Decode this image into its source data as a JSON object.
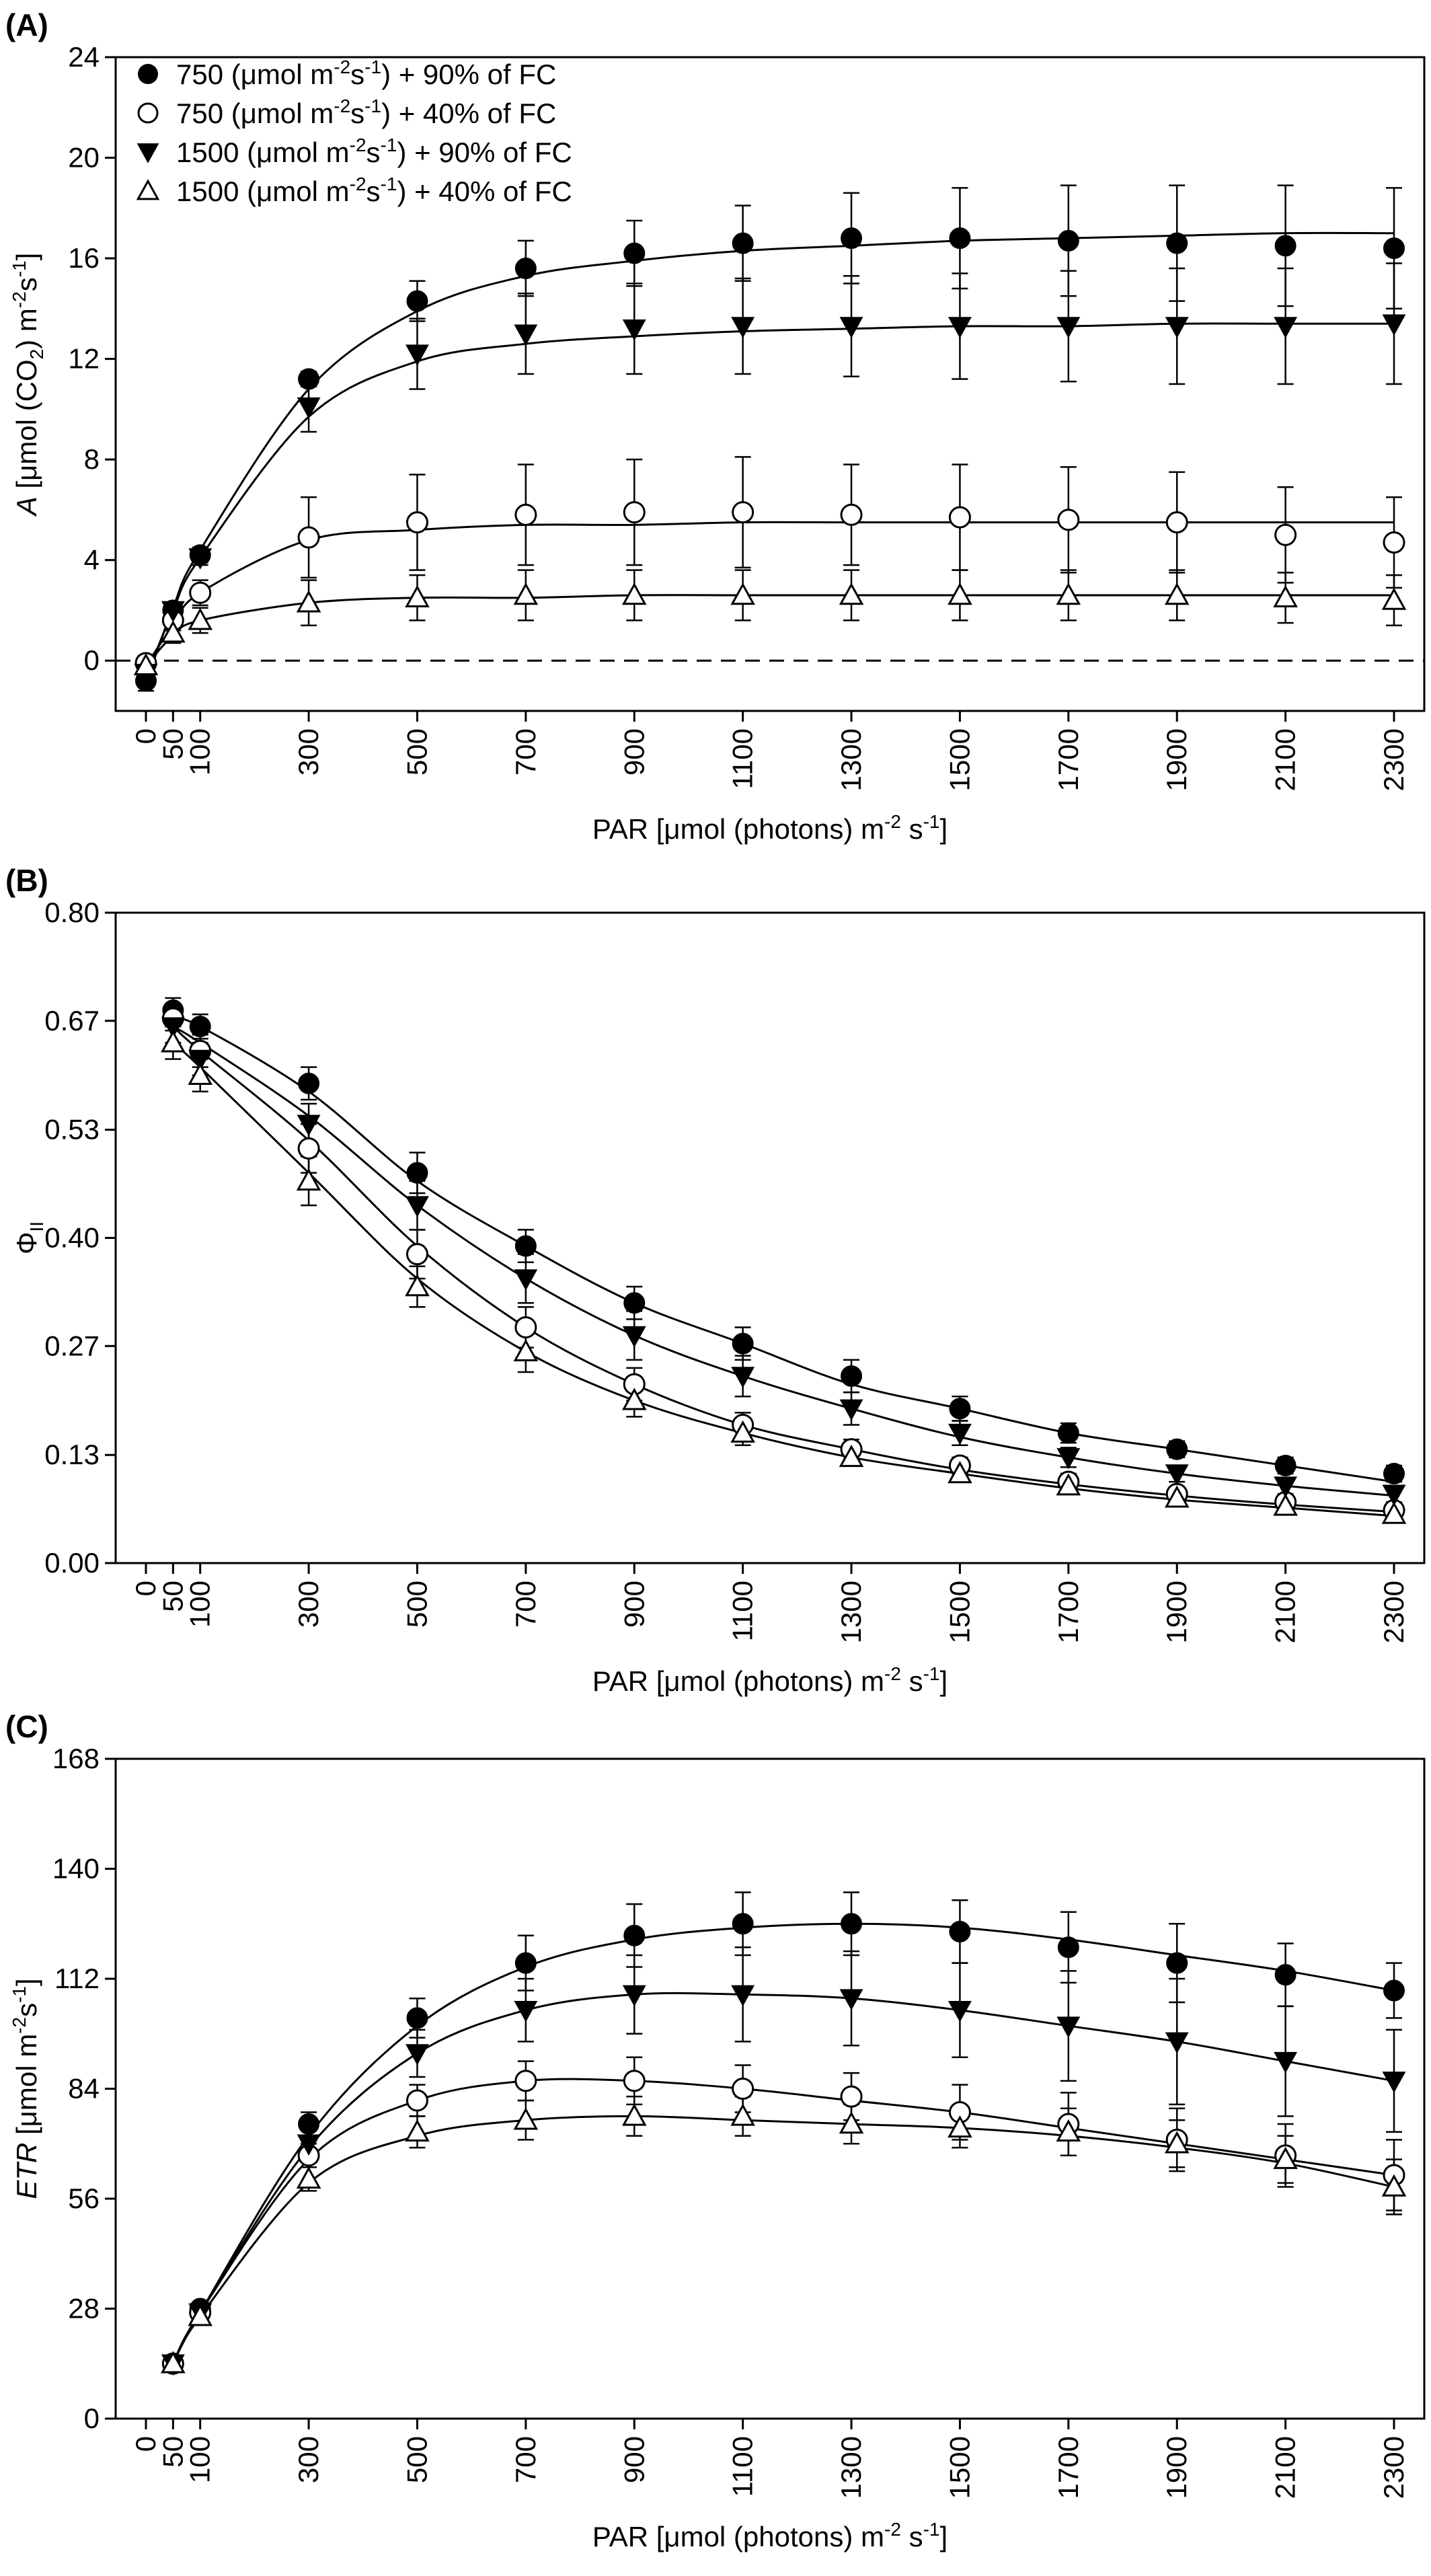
{
  "figure": {
    "legend": [
      {
        "marker": "filled-circle",
        "label": "750 (μmol m-2s-1) + 90% of FC",
        "parts": [
          "750 (μmol m",
          "-2",
          "s",
          "-1",
          ") + 90% of FC"
        ]
      },
      {
        "marker": "open-circle",
        "label": "750 (μmol m-2s-1) + 40% of FC",
        "parts": [
          "750 (μmol m",
          "-2",
          "s",
          "-1",
          ") + 40% of FC"
        ]
      },
      {
        "marker": "filled-triangle-down",
        "label": "1500 (μmol m-2s-1) + 90% of FC",
        "parts": [
          "1500 (μmol m",
          "-2",
          "s",
          "-1",
          ") + 90% of FC"
        ]
      },
      {
        "marker": "open-triangle-up",
        "label": "1500 (μmol m-2s-1) + 40% of FC",
        "parts": [
          "1500 (μmol m",
          "-2",
          "s",
          "-1",
          ") + 40% of FC"
        ]
      }
    ],
    "colors": {
      "ink": "#000000",
      "background": "#ffffff"
    }
  },
  "chart_data": [
    {
      "panel_label": "(A)",
      "type": "scatter",
      "xlabel": "PAR [μmol (photons) m-2 s-1]",
      "xlabel_parts": [
        "PAR [μmol (photons) m",
        "-2",
        " s",
        "-1",
        "]"
      ],
      "ylabel": "A [μmol (CO2) m-2s-1]",
      "ylabel_parts": [
        [
          "A",
          "italic"
        ],
        [
          " [μmol (CO",
          ""
        ],
        [
          "2",
          "sub"
        ],
        [
          ") m",
          ""
        ],
        [
          "-2",
          "sup"
        ],
        [
          "s",
          ""
        ],
        [
          "-1",
          "sup"
        ],
        [
          "]",
          ""
        ]
      ],
      "xlim": [
        0,
        2300
      ],
      "ylim": [
        -2,
        24
      ],
      "x_ticks": [
        0,
        50,
        100,
        300,
        500,
        700,
        900,
        1100,
        1300,
        1500,
        1700,
        1900,
        2100,
        2300
      ],
      "y_ticks": [
        0,
        4,
        8,
        12,
        16,
        20,
        24
      ],
      "y_tick_labels": [
        "0",
        "4",
        "8",
        "12",
        "16",
        "20",
        "24"
      ],
      "reference_line": {
        "y": 0,
        "style": "dashed"
      },
      "legend_position": "top-left",
      "grid": false,
      "x": [
        0,
        50,
        100,
        300,
        500,
        700,
        900,
        1100,
        1300,
        1500,
        1700,
        1900,
        2100,
        2300
      ],
      "series": [
        {
          "legend_index": 0,
          "marker": "filled-circle",
          "y": [
            -0.8,
            2.0,
            4.2,
            11.2,
            14.3,
            15.6,
            16.2,
            16.6,
            16.8,
            16.8,
            16.7,
            16.6,
            16.5,
            16.4
          ],
          "err": [
            0.4,
            0.3,
            0.3,
            0.3,
            0.8,
            1.1,
            1.3,
            1.5,
            1.8,
            2.0,
            2.2,
            2.3,
            2.4,
            2.4
          ],
          "fit": [
            -0.9,
            2.1,
            4.4,
            10.8,
            13.9,
            15.3,
            15.9,
            16.3,
            16.5,
            16.7,
            16.8,
            16.9,
            17.0,
            17.0
          ]
        },
        {
          "legend_index": 1,
          "marker": "open-circle",
          "y": [
            -0.1,
            1.6,
            2.7,
            4.9,
            5.5,
            5.8,
            5.9,
            5.9,
            5.8,
            5.7,
            5.6,
            5.5,
            5.0,
            4.7
          ],
          "err": [
            0.3,
            0.4,
            0.5,
            1.6,
            1.9,
            2.0,
            2.1,
            2.2,
            2.0,
            2.1,
            2.1,
            2.0,
            1.9,
            1.8
          ],
          "fit": [
            -0.2,
            1.4,
            2.7,
            4.8,
            5.2,
            5.4,
            5.4,
            5.5,
            5.5,
            5.5,
            5.5,
            5.5,
            5.5,
            5.5
          ]
        },
        {
          "legend_index": 2,
          "marker": "filled-triangle-down",
          "y": [
            -0.5,
            2.0,
            4.1,
            10.1,
            12.2,
            13.0,
            13.2,
            13.3,
            13.3,
            13.3,
            13.3,
            13.3,
            13.3,
            13.4
          ],
          "err": [
            0.4,
            0.3,
            0.3,
            1.0,
            1.4,
            1.6,
            1.8,
            1.9,
            2.0,
            2.1,
            2.2,
            2.3,
            2.3,
            2.4
          ],
          "fit": [
            -0.7,
            2.0,
            4.1,
            9.7,
            11.9,
            12.6,
            12.9,
            13.1,
            13.2,
            13.3,
            13.3,
            13.4,
            13.4,
            13.4
          ]
        },
        {
          "legend_index": 3,
          "marker": "open-triangle-up",
          "y": [
            -0.2,
            1.1,
            1.6,
            2.3,
            2.5,
            2.6,
            2.6,
            2.6,
            2.6,
            2.6,
            2.6,
            2.6,
            2.5,
            2.4
          ],
          "err": [
            0.3,
            0.4,
            0.5,
            0.9,
            0.9,
            1.0,
            1.0,
            1.0,
            1.0,
            1.0,
            1.0,
            1.0,
            1.0,
            1.0
          ],
          "fit": [
            -0.2,
            1.0,
            1.6,
            2.3,
            2.5,
            2.5,
            2.6,
            2.6,
            2.6,
            2.6,
            2.6,
            2.6,
            2.6,
            2.6
          ]
        }
      ]
    },
    {
      "panel_label": "(B)",
      "type": "scatter",
      "xlabel": "PAR [μmol (photons) m-2 s-1]",
      "xlabel_parts": [
        "PAR [μmol (photons) m",
        "-2",
        " s",
        "-1",
        "]"
      ],
      "ylabel": "ΦII",
      "ylabel_parts": [
        [
          "Φ",
          ""
        ],
        [
          "II",
          "sub"
        ]
      ],
      "xlim": [
        0,
        2300
      ],
      "ylim": [
        0,
        0.8
      ],
      "x_ticks": [
        0,
        50,
        100,
        300,
        500,
        700,
        900,
        1100,
        1300,
        1500,
        1700,
        1900,
        2100,
        2300
      ],
      "y_ticks": [
        0,
        0.133,
        0.267,
        0.4,
        0.533,
        0.667,
        0.8
      ],
      "y_tick_labels": [
        "0.00",
        "0.13",
        "0.27",
        "0.40",
        "0.53",
        "0.67",
        "0.80"
      ],
      "grid": false,
      "x": [
        50,
        100,
        300,
        500,
        700,
        900,
        1100,
        1300,
        1500,
        1700,
        1900,
        2100,
        2300
      ],
      "series": [
        {
          "legend_index": 0,
          "marker": "filled-circle",
          "y": [
            0.68,
            0.66,
            0.59,
            0.48,
            0.39,
            0.32,
            0.27,
            0.23,
            0.19,
            0.16,
            0.14,
            0.12,
            0.11
          ],
          "err": [
            0.015,
            0.015,
            0.02,
            0.025,
            0.02,
            0.02,
            0.02,
            0.02,
            0.015,
            0.012,
            0.01,
            0.01,
            0.01
          ],
          "fit": [
            0.67,
            0.66,
            0.58,
            0.47,
            0.39,
            0.32,
            0.27,
            0.22,
            0.19,
            0.16,
            0.14,
            0.12,
            0.1
          ]
        },
        {
          "legend_index": 1,
          "marker": "open-circle",
          "y": [
            0.67,
            0.63,
            0.51,
            0.38,
            0.29,
            0.22,
            0.17,
            0.14,
            0.12,
            0.1,
            0.085,
            0.075,
            0.065
          ],
          "err": [
            0.015,
            0.02,
            0.03,
            0.03,
            0.025,
            0.02,
            0.015,
            0.012,
            0.01,
            0.01,
            0.008,
            0.008,
            0.008
          ],
          "fit": [
            0.66,
            0.63,
            0.52,
            0.39,
            0.29,
            0.22,
            0.17,
            0.14,
            0.115,
            0.097,
            0.083,
            0.072,
            0.063
          ]
        },
        {
          "legend_index": 2,
          "marker": "filled-triangle-down",
          "y": [
            0.66,
            0.62,
            0.54,
            0.44,
            0.35,
            0.28,
            0.23,
            0.19,
            0.16,
            0.13,
            0.11,
            0.095,
            0.085
          ],
          "err": [
            0.02,
            0.02,
            0.025,
            0.03,
            0.03,
            0.03,
            0.025,
            0.02,
            0.015,
            0.012,
            0.01,
            0.01,
            0.01
          ],
          "fit": [
            0.66,
            0.64,
            0.55,
            0.44,
            0.35,
            0.28,
            0.23,
            0.19,
            0.155,
            0.13,
            0.11,
            0.095,
            0.083
          ]
        },
        {
          "legend_index": 3,
          "marker": "open-triangle-up",
          "y": [
            0.64,
            0.6,
            0.47,
            0.34,
            0.26,
            0.2,
            0.16,
            0.13,
            0.11,
            0.095,
            0.08,
            0.07,
            0.06
          ],
          "err": [
            0.02,
            0.02,
            0.03,
            0.025,
            0.025,
            0.02,
            0.015,
            0.01,
            0.01,
            0.01,
            0.008,
            0.008,
            0.008
          ],
          "fit": [
            0.64,
            0.61,
            0.48,
            0.35,
            0.26,
            0.2,
            0.16,
            0.13,
            0.11,
            0.092,
            0.078,
            0.068,
            0.058
          ]
        }
      ]
    },
    {
      "panel_label": "(C)",
      "type": "scatter",
      "xlabel": "PAR [μmol (photons) m-2 s-1]",
      "xlabel_parts": [
        "PAR [μmol (photons) m",
        "-2",
        " s",
        "-1",
        "]"
      ],
      "ylabel": "ETR [μmol m-2s-1]",
      "ylabel_parts": [
        [
          "ETR",
          "italic"
        ],
        [
          " [μmol m",
          ""
        ],
        [
          "-2",
          "sup"
        ],
        [
          "s",
          ""
        ],
        [
          "-1",
          "sup"
        ],
        [
          "]",
          ""
        ]
      ],
      "xlim": [
        0,
        2300
      ],
      "ylim": [
        0,
        168
      ],
      "x_ticks": [
        0,
        50,
        100,
        300,
        500,
        700,
        900,
        1100,
        1300,
        1500,
        1700,
        1900,
        2100,
        2300
      ],
      "y_ticks": [
        0,
        28,
        56,
        84,
        112,
        140,
        168
      ],
      "y_tick_labels": [
        "0",
        "28",
        "56",
        "84",
        "112",
        "140",
        "168"
      ],
      "grid": false,
      "x": [
        50,
        100,
        300,
        500,
        700,
        900,
        1100,
        1300,
        1500,
        1700,
        1900,
        2100,
        2300
      ],
      "series": [
        {
          "legend_index": 0,
          "marker": "filled-circle",
          "y": [
            14,
            28,
            75,
            102,
            116,
            123,
            126,
            126,
            124,
            120,
            116,
            113,
            109
          ],
          "err": [
            1,
            1.5,
            3,
            5,
            7,
            8,
            8,
            8,
            8,
            9,
            10,
            8,
            7
          ],
          "fit": [
            14,
            27,
            72,
            100,
            115,
            122,
            125,
            126,
            125,
            122,
            118,
            114,
            109
          ]
        },
        {
          "legend_index": 1,
          "marker": "open-circle",
          "y": [
            14,
            27,
            67,
            81,
            86,
            86,
            84,
            82,
            78,
            75,
            71,
            67,
            62
          ],
          "err": [
            1,
            1.5,
            3,
            4,
            5,
            6,
            6,
            6,
            7,
            8,
            8,
            8,
            9
          ],
          "fit": [
            14,
            27,
            66,
            81,
            86,
            86,
            84,
            81,
            78,
            74,
            70,
            66,
            62
          ]
        },
        {
          "legend_index": 2,
          "marker": "filled-triangle-down",
          "y": [
            14,
            27,
            70,
            93,
            104,
            108,
            108,
            107,
            104,
            100,
            96,
            91,
            86
          ],
          "err": [
            1,
            1.5,
            4,
            6,
            8,
            10,
            12,
            12,
            12,
            14,
            16,
            14,
            13
          ],
          "fit": [
            14,
            27,
            69,
            93,
            104,
            108,
            108,
            107,
            104,
            100,
            96,
            91,
            86
          ]
        },
        {
          "legend_index": 3,
          "marker": "open-triangle-up",
          "y": [
            14,
            26,
            61,
            73,
            76,
            77,
            77,
            75,
            74,
            73,
            70,
            66,
            59
          ],
          "err": [
            1,
            1.5,
            3,
            4,
            5,
            5,
            5,
            5,
            5,
            6,
            6,
            6,
            7
          ],
          "fit": [
            14,
            26,
            60,
            72,
            76,
            77,
            76,
            75,
            74,
            72,
            69,
            65,
            59
          ]
        }
      ]
    }
  ]
}
